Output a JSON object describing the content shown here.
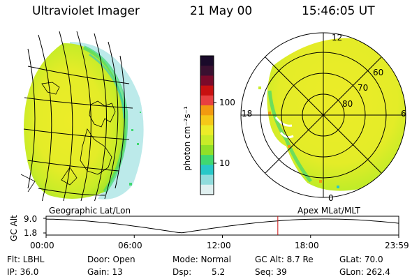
{
  "header": {
    "instrument": "Ultraviolet Imager",
    "date": "21 May 00",
    "time": "15:46:05 UT"
  },
  "colorbar": {
    "unit_label": "photon cm⁻²s⁻¹",
    "ticks": [
      "100",
      "10"
    ],
    "colors": [
      "#1a0a2a",
      "#3a1030",
      "#7a0a2a",
      "#c81010",
      "#e84040",
      "#f29a10",
      "#f5c818",
      "#ecec28",
      "#c8ec28",
      "#90e028",
      "#40d870",
      "#28c8c8",
      "#90dcdc",
      "#e0f0f0"
    ]
  },
  "polar": {
    "mlt_labels": {
      "top": "12",
      "left": "18",
      "right": "6",
      "bottom": "0"
    },
    "lat_labels": [
      "60",
      "70",
      "80"
    ]
  },
  "timeline": {
    "left_label": "Geographic Lat/Lon",
    "right_label": "Apex MLat/MLT",
    "y_axis_label": "GC Alt",
    "y_ticks": [
      "9.0",
      "1.8"
    ],
    "x_ticks": [
      "00:00",
      "06:00",
      "12:00",
      "18:00",
      "23:59"
    ],
    "current_hour": 15.77
  },
  "info": {
    "row1": {
      "filter": "Flt: LBHL",
      "door": "Door: Open",
      "mode": "Mode: Normal",
      "gc_alt": "GC Alt: 8.7 Re",
      "glat": "GLat:  70.0"
    },
    "row2": {
      "ip": "IP: 36.0",
      "gain": "Gain: 13",
      "dsp_label": "Dsp:",
      "dsp_value": "5.2",
      "seq": "Seq: 39",
      "glon": "GLon: 262.4"
    }
  }
}
